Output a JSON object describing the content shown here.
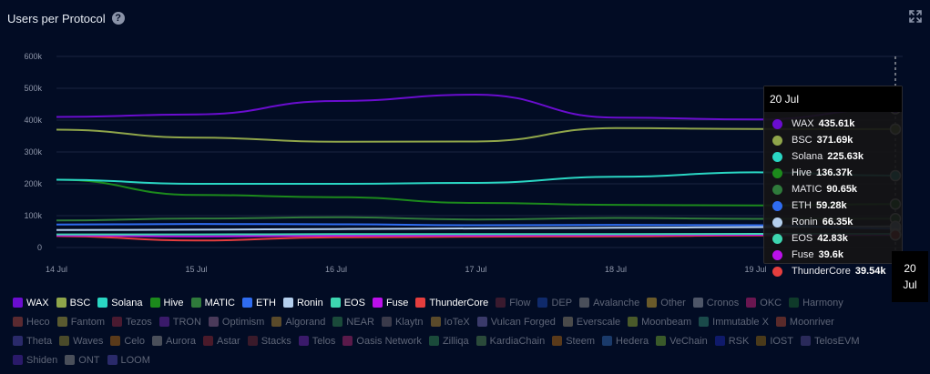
{
  "header": {
    "title": "Users per Protocol",
    "help_glyph": "?"
  },
  "colors": {
    "background": "#020c24",
    "grid": "#1a2440",
    "axis_text": "#8f97aa"
  },
  "tooltip": {
    "date": "20 Jul",
    "rows": [
      {
        "name": "WAX",
        "value": "435.61k",
        "color": "#6a0dcf"
      },
      {
        "name": "BSC",
        "value": "371.69k",
        "color": "#8fa54a"
      },
      {
        "name": "Solana",
        "value": "225.63k",
        "color": "#2ad6c3"
      },
      {
        "name": "Hive",
        "value": "136.37k",
        "color": "#1c8a1c"
      },
      {
        "name": "MATIC",
        "value": "90.65k",
        "color": "#2f7a3b"
      },
      {
        "name": "ETH",
        "value": "59.28k",
        "color": "#2f6cf0"
      },
      {
        "name": "Ronin",
        "value": "66.35k",
        "color": "#b4cfee"
      },
      {
        "name": "EOS",
        "value": "42.83k",
        "color": "#3dd6b0"
      },
      {
        "name": "Fuse",
        "value": "39.6k",
        "color": "#bb10ea"
      },
      {
        "name": "ThunderCore",
        "value": "39.54k",
        "color": "#e53e3e"
      }
    ]
  },
  "date_tag": {
    "line1": "20",
    "line2": "Jul"
  },
  "legend": [
    {
      "name": "WAX",
      "color": "#6a0dcf",
      "active": true
    },
    {
      "name": "BSC",
      "color": "#8fa54a",
      "active": true
    },
    {
      "name": "Solana",
      "color": "#2ad6c3",
      "active": true
    },
    {
      "name": "Hive",
      "color": "#1c8a1c",
      "active": true
    },
    {
      "name": "MATIC",
      "color": "#2f7a3b",
      "active": true
    },
    {
      "name": "ETH",
      "color": "#2f6cf0",
      "active": true
    },
    {
      "name": "Ronin",
      "color": "#b4cfee",
      "active": true
    },
    {
      "name": "EOS",
      "color": "#3dd6b0",
      "active": true
    },
    {
      "name": "Fuse",
      "color": "#bb10ea",
      "active": true
    },
    {
      "name": "ThunderCore",
      "color": "#e53e3e",
      "active": true
    },
    {
      "name": "Flow",
      "color": "#3a1a2e",
      "active": false
    },
    {
      "name": "DEP",
      "color": "#0f2a6b",
      "active": false
    },
    {
      "name": "Avalanche",
      "color": "#4a4f5a",
      "active": false
    },
    {
      "name": "Other",
      "color": "#6a5a2a",
      "active": false
    },
    {
      "name": "Cronos",
      "color": "#4e5668",
      "active": false
    },
    {
      "name": "OKC",
      "color": "#6a1650",
      "active": false
    },
    {
      "name": "Harmony",
      "color": "#0f3a2a",
      "active": false
    },
    {
      "name": "Heco",
      "color": "#5a2a30",
      "active": false
    },
    {
      "name": "Fantom",
      "color": "#5a5a30",
      "active": false
    },
    {
      "name": "Tezos",
      "color": "#4a1a30",
      "active": false
    },
    {
      "name": "TRON",
      "color": "#3a1a6a",
      "active": false
    },
    {
      "name": "Optimism",
      "color": "#4a3a5a",
      "active": false
    },
    {
      "name": "Algorand",
      "color": "#5a4a2a",
      "active": false
    },
    {
      "name": "NEAR",
      "color": "#1a4a3a",
      "active": false
    },
    {
      "name": "Klaytn",
      "color": "#3a3a4a",
      "active": false
    },
    {
      "name": "IoTeX",
      "color": "#5a4a2a",
      "active": false
    },
    {
      "name": "Vulcan Forged",
      "color": "#3a3a6a",
      "active": false
    },
    {
      "name": "Everscale",
      "color": "#4a4a4a",
      "active": false
    },
    {
      "name": "Moonbeam",
      "color": "#4a5a2a",
      "active": false
    },
    {
      "name": "Immutable X",
      "color": "#1a4a4a",
      "active": false
    },
    {
      "name": "Moonriver",
      "color": "#5a2a2a",
      "active": false
    },
    {
      "name": "Theta",
      "color": "#2a2a6a",
      "active": false
    },
    {
      "name": "Waves",
      "color": "#4a4a2a",
      "active": false
    },
    {
      "name": "Celo",
      "color": "#5a3a1a",
      "active": false
    },
    {
      "name": "Aurora",
      "color": "#4a4f5a",
      "active": false
    },
    {
      "name": "Astar",
      "color": "#4a1a2a",
      "active": false
    },
    {
      "name": "Stacks",
      "color": "#3a1a2a",
      "active": false
    },
    {
      "name": "Telos",
      "color": "#3a1a6a",
      "active": false
    },
    {
      "name": "Oasis Network",
      "color": "#5a1a4a",
      "active": false
    },
    {
      "name": "Zilliqa",
      "color": "#1a4a3a",
      "active": false
    },
    {
      "name": "KardiaChain",
      "color": "#2a4a3a",
      "active": false
    },
    {
      "name": "Steem",
      "color": "#5a3a1a",
      "active": false
    },
    {
      "name": "Hedera",
      "color": "#1a3a6a",
      "active": false
    },
    {
      "name": "VeChain",
      "color": "#3a5a2a",
      "active": false
    },
    {
      "name": "RSK",
      "color": "#0f1a6a",
      "active": false
    },
    {
      "name": "IOST",
      "color": "#4a3a1a",
      "active": false
    },
    {
      "name": "TelosEVM",
      "color": "#2a2a5a",
      "active": false
    },
    {
      "name": "Shiden",
      "color": "#2a1a6a",
      "active": false
    },
    {
      "name": "ONT",
      "color": "#4a4f5a",
      "active": false
    },
    {
      "name": "LOOM",
      "color": "#2a2a6a",
      "active": false
    }
  ],
  "chart_data": {
    "type": "line",
    "title": "Users per Protocol",
    "x": [
      "14 Jul",
      "15 Jul",
      "16 Jul",
      "17 Jul",
      "18 Jul",
      "19 Jul",
      "20 Jul"
    ],
    "y_ticks": [
      "0",
      "100k",
      "200k",
      "300k",
      "400k",
      "500k",
      "600k"
    ],
    "ylim": [
      0,
      600000
    ],
    "grid": true,
    "crosshair_x": "20 Jul",
    "series": [
      {
        "name": "WAX",
        "color": "#6a0dcf",
        "values": [
          410000,
          418000,
          460000,
          480000,
          408000,
          402000,
          435610
        ]
      },
      {
        "name": "BSC",
        "color": "#8fa54a",
        "values": [
          370000,
          345000,
          332000,
          333000,
          375000,
          372000,
          371690
        ]
      },
      {
        "name": "Solana",
        "color": "#2ad6c3",
        "values": [
          213000,
          200000,
          200000,
          203000,
          222000,
          236000,
          225630
        ]
      },
      {
        "name": "Hive",
        "color": "#1c8a1c",
        "values": [
          213000,
          165000,
          158000,
          140000,
          134000,
          132000,
          136370
        ]
      },
      {
        "name": "MATIC",
        "color": "#2f7a3b",
        "values": [
          85000,
          91000,
          95000,
          88000,
          93000,
          90000,
          90650
        ]
      },
      {
        "name": "ETH",
        "color": "#2f6cf0",
        "values": [
          72000,
          74000,
          73000,
          70000,
          71000,
          70000,
          59280
        ]
      },
      {
        "name": "Ronin",
        "color": "#b4cfee",
        "values": [
          55000,
          56000,
          58000,
          60000,
          62000,
          64000,
          66350
        ]
      },
      {
        "name": "EOS",
        "color": "#3dd6b0",
        "values": [
          41000,
          41000,
          42000,
          42000,
          42000,
          43000,
          42830
        ]
      },
      {
        "name": "Fuse",
        "color": "#bb10ea",
        "values": [
          38000,
          35000,
          37000,
          38000,
          39000,
          40000,
          39600
        ]
      },
      {
        "name": "ThunderCore",
        "color": "#e53e3e",
        "values": [
          36000,
          22000,
          32000,
          34000,
          35000,
          38000,
          39540
        ]
      }
    ]
  }
}
